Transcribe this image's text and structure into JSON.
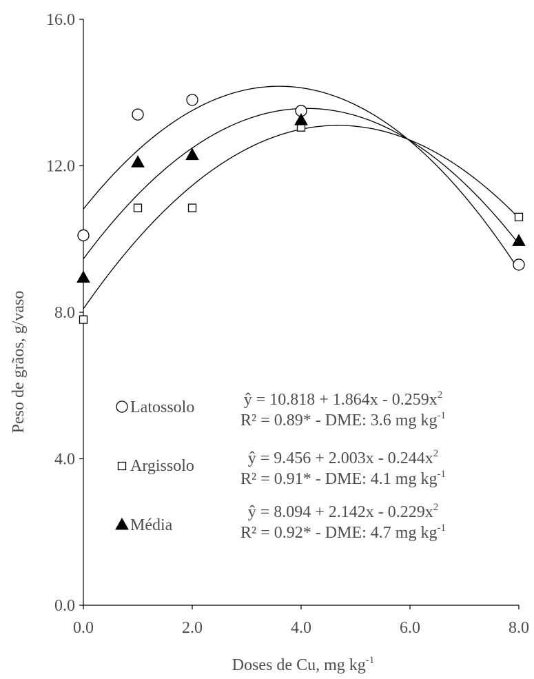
{
  "chart_data": {
    "type": "scatter",
    "xlabel_main": "Doses de Cu, mg kg",
    "xlabel_sup": "-1",
    "ylabel": "Peso de grãos, g/vaso",
    "xlim": [
      0,
      8
    ],
    "ylim": [
      0,
      16
    ],
    "xticks": [
      {
        "value": 0,
        "label": "0.0"
      },
      {
        "value": 2,
        "label": "2.0"
      },
      {
        "value": 4,
        "label": "4.0"
      },
      {
        "value": 6,
        "label": "6.0"
      },
      {
        "value": 8,
        "label": "8.0"
      }
    ],
    "yticks": [
      {
        "value": 0,
        "label": "0.0"
      },
      {
        "value": 4,
        "label": "4.0"
      },
      {
        "value": 8,
        "label": "8.0"
      },
      {
        "value": 12,
        "label": "12.0"
      },
      {
        "value": 16,
        "label": "16.0"
      }
    ],
    "grid": false,
    "legend_position": "center-left",
    "series": [
      {
        "name": "Latossolo",
        "marker": "circle",
        "x": [
          0,
          1,
          2,
          4,
          8
        ],
        "y": [
          10.1,
          13.4,
          13.8,
          13.5,
          9.3
        ],
        "fit": {
          "a": 10.818,
          "b": 1.864,
          "c": -0.259
        },
        "equation": "ŷ = 10.818 + 1.864x - 0.259x",
        "r2": "R² = 0.89* - DME: 3.6 mg kg"
      },
      {
        "name": "Argissolo",
        "marker": "square",
        "x": [
          0,
          1,
          2,
          4,
          8
        ],
        "y": [
          7.8,
          10.85,
          10.85,
          13.05,
          10.6
        ],
        "fit": {
          "a": 9.456,
          "b": 2.003,
          "c": -0.244
        },
        "equation": "ŷ = 9.456 + 2.003x - 0.244x",
        "r2": "R² = 0.91* - DME: 4.1 mg kg"
      },
      {
        "name": "Média",
        "marker": "triangle",
        "x": [
          0,
          1,
          2,
          4,
          8
        ],
        "y": [
          8.95,
          12.1,
          12.3,
          13.25,
          9.95
        ],
        "fit": {
          "a": 8.094,
          "b": 2.142,
          "c": -0.229
        },
        "equation": "ŷ = 8.094 + 2.142x - 0.229x",
        "r2": "R² = 0.92* - DME: 4.7 mg kg"
      }
    ],
    "eq_sup": "2",
    "unit_sup": "-1"
  }
}
